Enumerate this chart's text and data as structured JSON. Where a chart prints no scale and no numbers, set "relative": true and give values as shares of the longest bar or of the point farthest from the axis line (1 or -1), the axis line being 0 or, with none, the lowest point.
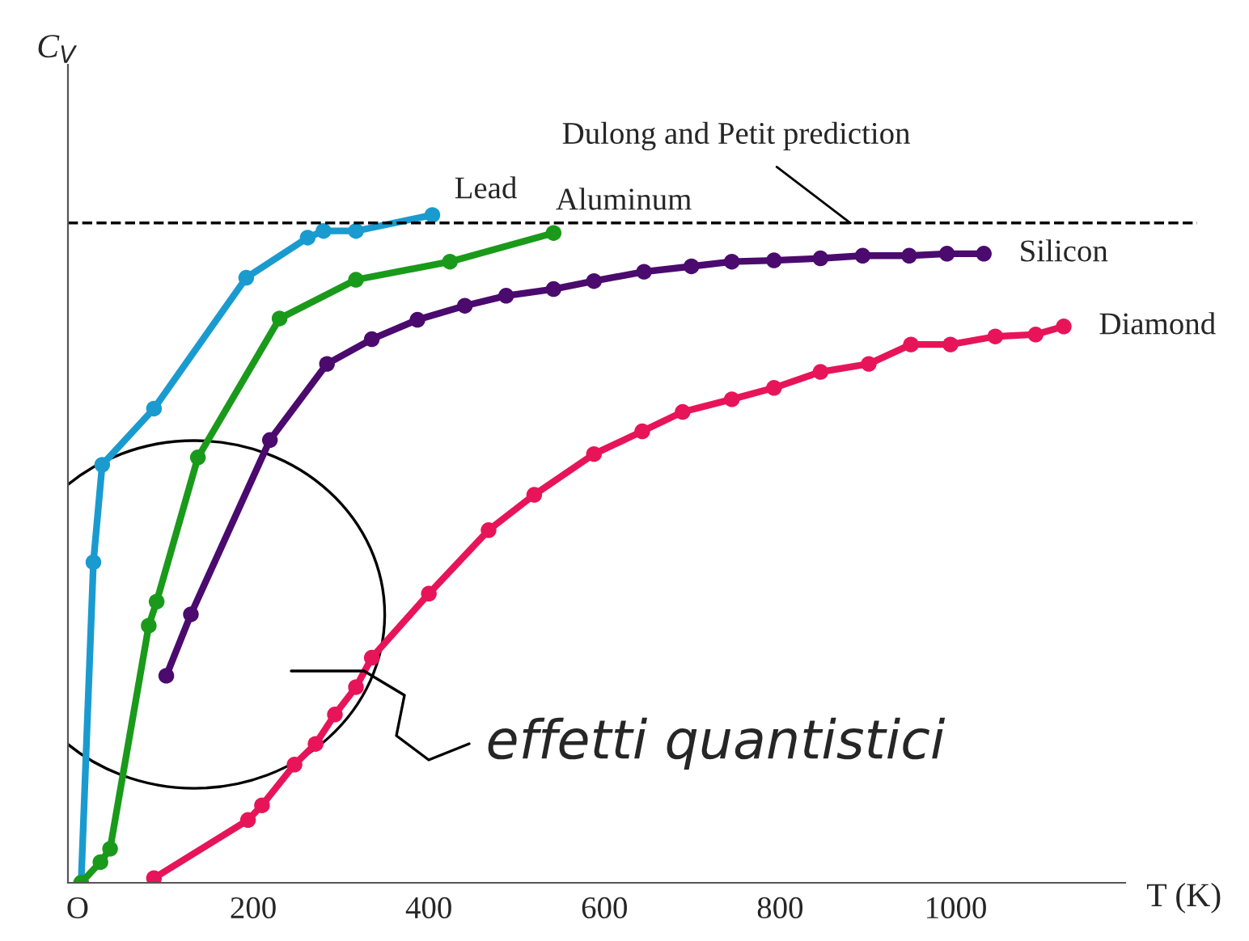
{
  "chart_data": {
    "type": "line",
    "relative": true,
    "xlabel": "T (K)",
    "ylabel": "C$_{V}$",
    "xlim": [
      -11,
      1275
    ],
    "xticks": [
      {
        "value": 0,
        "label": "O"
      },
      200,
      400,
      600,
      800,
      1000
    ],
    "marker": "circle",
    "line_style": "solid",
    "grid": false,
    "legend": false,
    "series": [
      {
        "name": "Lead",
        "color": "#1a9bd0",
        "x": [
          4,
          18,
          28,
          87,
          192,
          262,
          280,
          317,
          404
        ],
        "values": [
          0,
          0.48,
          0.626,
          0.71,
          0.906,
          0.966,
          0.976,
          0.976,
          1.0
        ]
      },
      {
        "name": "Aluminum",
        "color": "#1a9a1a",
        "x": [
          4,
          26,
          37,
          81,
          90,
          137,
          230,
          317,
          424,
          542
        ],
        "values": [
          0,
          0.031,
          0.051,
          0.385,
          0.421,
          0.637,
          0.845,
          0.903,
          0.93,
          0.973
        ]
      },
      {
        "name": "Silicon",
        "color": "#4b0a6e",
        "x": [
          101,
          129,
          219,
          284,
          335,
          387,
          441,
          488,
          542,
          588,
          645,
          699,
          745,
          793,
          846,
          894,
          947,
          990,
          1032
        ],
        "values": [
          0.31,
          0.402,
          0.663,
          0.777,
          0.814,
          0.843,
          0.864,
          0.879,
          0.889,
          0.901,
          0.915,
          0.923,
          0.93,
          0.932,
          0.935,
          0.939,
          0.939,
          0.942,
          0.942
        ]
      },
      {
        "name": "Diamond",
        "color": "#e8145a",
        "x": [
          87,
          194,
          210,
          247,
          271,
          293,
          317,
          335,
          400,
          468,
          520,
          588,
          643,
          689,
          745,
          793,
          846,
          901,
          949,
          994,
          1045,
          1091,
          1123
        ],
        "values": [
          0.007,
          0.094,
          0.116,
          0.177,
          0.208,
          0.252,
          0.293,
          0.337,
          0.433,
          0.528,
          0.581,
          0.642,
          0.676,
          0.705,
          0.724,
          0.741,
          0.765,
          0.777,
          0.806,
          0.806,
          0.818,
          0.821,
          0.833
        ]
      }
    ],
    "ref_lines": [
      {
        "axis": "y",
        "value": 0.988,
        "label": "Dulong and Petit prediction",
        "color": "#000000",
        "line_style": "dashed"
      }
    ],
    "annotations": [
      "effetti quantistici"
    ]
  }
}
